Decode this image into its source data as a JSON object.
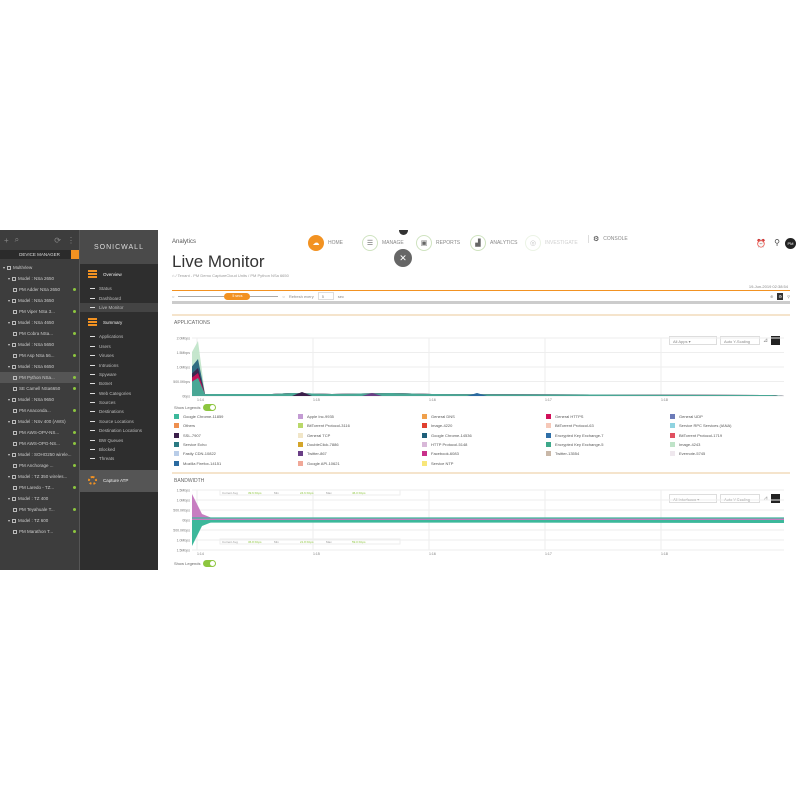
{
  "tree": {
    "header": "DEVICE MANAGER",
    "items": [
      {
        "label": "MultiView",
        "level": 0
      },
      {
        "label": "Model : NSa 2650",
        "level": 1
      },
      {
        "label": "PM Adder NSa 2650",
        "level": 2,
        "dot": true
      },
      {
        "label": "Model : NSa 3650",
        "level": 1
      },
      {
        "label": "PM Viper NSa 3...",
        "level": 2,
        "dot": true
      },
      {
        "label": "Model : NSa 4650",
        "level": 1
      },
      {
        "label": "PM Cobra NSa...",
        "level": 2,
        "dot": true
      },
      {
        "label": "Model : NSa 5650",
        "level": 1
      },
      {
        "label": "PM Asp NSa 56...",
        "level": 2,
        "dot": true
      },
      {
        "label": "Model : NSa 6650",
        "level": 1
      },
      {
        "label": "PM Python NSa...",
        "level": 2,
        "dot": true,
        "selected": true
      },
      {
        "label": "SE Camell NSa6650",
        "level": 2,
        "dot": true
      },
      {
        "label": "Model : NSa 9650",
        "level": 1
      },
      {
        "label": "PM Anaconda...",
        "level": 2,
        "dot": true
      },
      {
        "label": "Model : NSv 400 (AWS)",
        "level": 1
      },
      {
        "label": "PM AWS-OPV-NS...",
        "level": 2,
        "dot": true
      },
      {
        "label": "PM AWS-OPG-NS...",
        "level": 2,
        "dot": true
      },
      {
        "label": "Model : SOHO250 wirele...",
        "level": 1
      },
      {
        "label": "PM Anchorage ...",
        "level": 2,
        "dot": true
      },
      {
        "label": "Model : TZ 350 wireles...",
        "level": 1
      },
      {
        "label": "PM Laredo - TZ...",
        "level": 2,
        "dot": true
      },
      {
        "label": "Model : TZ 400",
        "level": 1
      },
      {
        "label": "PM Teyahuale T...",
        "level": 2,
        "dot": true
      },
      {
        "label": "Model : TZ 600",
        "level": 1
      },
      {
        "label": "PM Marathon T...",
        "level": 2,
        "dot": true
      }
    ]
  },
  "nav": {
    "logo": "SONICWALL",
    "overview": "Overview",
    "overview_items": [
      "Status",
      "Dashboard",
      "Live Monitor"
    ],
    "active": "Live Monitor",
    "summary": "Summary",
    "summary_items": [
      "Applications",
      "Users",
      "Viruses",
      "Intrusions",
      "Spyware",
      "Botnet",
      "Web Categories",
      "Sources",
      "Destinations",
      "Source Locations",
      "Destination Locations",
      "BW Queues",
      "Blocked",
      "Threats"
    ],
    "capture": "Capture ATP"
  },
  "header": {
    "section": "Analytics",
    "tabs": [
      "HOME",
      "MANAGE",
      "REPORTS",
      "ANALYTICS",
      "INVESTIGATE",
      "CONSOLE"
    ],
    "user_initials": "PM",
    "accent": "#f29222"
  },
  "page": {
    "title": "Live Monitor",
    "breadcrumb": "/ Tenant - PM Demo CaptureCloud Units / PM Python NSa 6650",
    "timestamp": "19-Jun-2019 02:38:54",
    "slider_label": "5 secs",
    "refresh_label": "Refresh every",
    "refresh_value": "5",
    "refresh_unit": "sec"
  },
  "applications": {
    "title": "APPLICATIONS",
    "filter": "All Apps",
    "scaling": "Auto Y-Scaling",
    "yticks": [
      "2.0Mbps",
      "1.5Mbps",
      "1.0Mbps",
      "500.0Kbps",
      "0bps"
    ],
    "xticks": [
      "1:14",
      "1:15",
      "1:16",
      "1:17",
      "1:18"
    ],
    "show_legends": "Show Legends",
    "legend": [
      {
        "name": "Google Chrome-11859",
        "color": "#3cb89b"
      },
      {
        "name": "Apple Inc-9935",
        "color": "#c39bd3"
      },
      {
        "name": "General DNS",
        "color": "#f0a04b"
      },
      {
        "name": "General HTTPS",
        "color": "#d1105a"
      },
      {
        "name": "General UDP",
        "color": "#6c7bb8"
      },
      {
        "name": "Others",
        "color": "#ee8f4f"
      },
      {
        "name": "BitTorrent Protocol-3116",
        "color": "#b9d86a"
      },
      {
        "name": "Image-4220",
        "color": "#e0402f"
      },
      {
        "name": "BitTorrent Protocol-63",
        "color": "#f6c8b8"
      },
      {
        "name": "Service RPC Services (IANA)",
        "color": "#8fd3e0"
      },
      {
        "name": "SSL-7907",
        "color": "#3b1f4a"
      },
      {
        "name": "General TCP",
        "color": "#f1e6c8"
      },
      {
        "name": "Google Chrome-14536",
        "color": "#1f5f7a"
      },
      {
        "name": "Encrypted Key Exchange-7",
        "color": "#2f6fa8"
      },
      {
        "name": "BitTorrent Protocol-1719",
        "color": "#e05060"
      },
      {
        "name": "Service Echo",
        "color": "#2a7a82"
      },
      {
        "name": "DoubleClick-7886",
        "color": "#d4a52a"
      },
      {
        "name": "HTTP Protocol-5148",
        "color": "#d8b8d8"
      },
      {
        "name": "Encrypted Key Exchange-5",
        "color": "#3ea88a"
      },
      {
        "name": "Image-4243",
        "color": "#bfe3c8"
      },
      {
        "name": "Fastly CDN-10822",
        "color": "#b9cde8"
      },
      {
        "name": "Twitter-867",
        "color": "#6a3f86"
      },
      {
        "name": "Facebook-6083",
        "color": "#c8308a"
      },
      {
        "name": "Twitter-13554",
        "color": "#c9b8a8"
      },
      {
        "name": "Evernote-5745",
        "color": "#efe8ee"
      },
      {
        "name": "Mozilla Firefox-14151",
        "color": "#2a6aa0"
      },
      {
        "name": "Google API-10621",
        "color": "#f0a898"
      },
      {
        "name": "Service NTP",
        "color": "#f8e67a"
      }
    ]
  },
  "bandwidth": {
    "title": "BANDWIDTH",
    "filter": "All Interfaces",
    "scaling": "Auto Y-Scaling",
    "yticks": [
      "1.5Mbps",
      "1.0Mbps",
      "500.0Kbps",
      "0bps",
      "500.0Kbps",
      "1.0Mbps",
      "1.5Mbps"
    ],
    "xticks": [
      "1:14",
      "1:15",
      "1:16",
      "1:17",
      "1:18"
    ],
    "show_legends": "Show Legends",
    "upper_stats": [
      "Current Avg",
      "39.6 Kbps",
      "Min",
      "24.6 Kbps",
      "Max",
      "46.0 Kbps"
    ],
    "lower_stats": [
      "Current Avg",
      "36.8 Kbps",
      "Min",
      "21.8 Kbps",
      "Max",
      "59.0 Kbps"
    ]
  }
}
